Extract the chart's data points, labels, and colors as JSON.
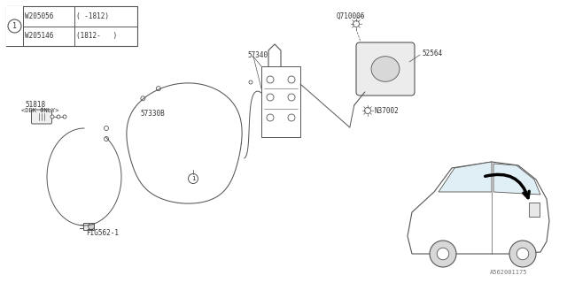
{
  "bg_color": "#ffffff",
  "lc": "#555555",
  "parts": {
    "table_circle": "1",
    "row1_pn": "W205056",
    "row1_range": "( -1812)",
    "row2_pn": "W205146",
    "row2_range": "(1812-   )",
    "label_51818": "51818",
    "label_51818_sub": "<DBK ONLY>",
    "label_FIG": "FIG562-1",
    "label_57330B": "57330B",
    "label_57340": "57340",
    "label_52564": "52564",
    "label_N37002": "N37002",
    "label_Q710006": "Q710006",
    "diagram_code": "A562001175"
  }
}
